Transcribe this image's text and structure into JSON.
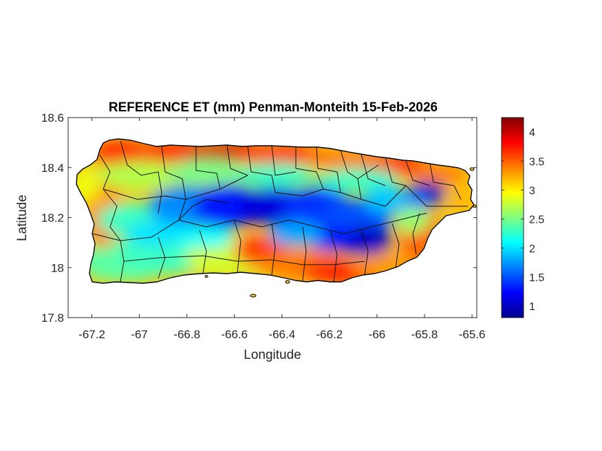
{
  "figure": {
    "title": "REFERENCE ET (mm) Penman-Monteith 15-Feb-2026",
    "xlabel": "Longitude",
    "ylabel": "Latitude"
  },
  "chart_data": {
    "type": "heatmap",
    "title": "REFERENCE ET (mm) Penman-Monteith 15-Feb-2026",
    "xlabel": "Longitude",
    "ylabel": "Latitude",
    "xlim": [
      -67.3,
      -65.58
    ],
    "ylim": [
      17.8,
      18.6
    ],
    "x_ticks": [
      -67.2,
      -67,
      -66.8,
      -66.6,
      -66.4,
      -66.2,
      -66,
      -65.8,
      -65.6
    ],
    "x_tick_labels": [
      "-67.2",
      "-67",
      "-66.8",
      "-66.6",
      "-66.4",
      "-66.2",
      "-66",
      "-65.8",
      "-65.6"
    ],
    "y_ticks": [
      17.8,
      18,
      18.2,
      18.4,
      18.6
    ],
    "y_tick_labels": [
      "17.8",
      "18",
      "18.2",
      "18.4",
      "18.6"
    ],
    "colormap": "jet",
    "colorbar": {
      "range": [
        0.8,
        4.25
      ],
      "ticks": [
        1,
        1.5,
        2,
        2.5,
        3,
        3.5,
        4
      ],
      "tick_labels": [
        "1",
        "1.5",
        "2",
        "2.5",
        "3",
        "3.5",
        "4"
      ]
    },
    "grid": false,
    "approximate_pattern": [
      {
        "region": "north coast",
        "et_mm": 4.0
      },
      {
        "region": "northwest coast",
        "et_mm": 3.5
      },
      {
        "region": "west coast",
        "et_mm": 2.8
      },
      {
        "region": "central mountains",
        "et_mm": 1.2
      },
      {
        "region": "east-central highlands",
        "et_mm": 1.1
      },
      {
        "region": "southwest",
        "et_mm": 2.5
      },
      {
        "region": "south coast",
        "et_mm": 3.6
      },
      {
        "region": "east coast",
        "et_mm": 3.4
      }
    ]
  }
}
